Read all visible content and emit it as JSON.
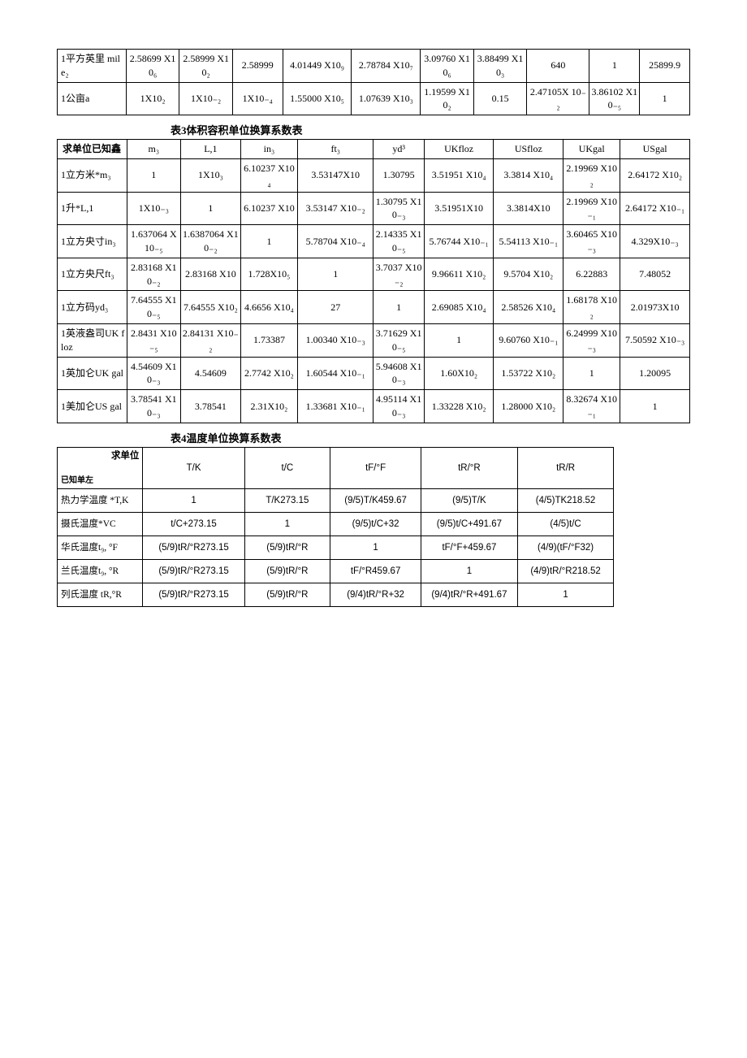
{
  "table1": {
    "rows": [
      {
        "label": "1平方英里 mile₂",
        "cells": [
          "2.58699 X10₆",
          "2.58999 X10₂",
          "2.58999",
          "4.01449 X10₉",
          "2.78784 X10₇",
          "3.09760 X10₆",
          "3.88499 X10₃",
          "640",
          "1",
          "25899.9"
        ]
      },
      {
        "label": "1公亩a",
        "cells": [
          "1X10₂",
          "1X10₋₂",
          "1X10₋₄",
          "1.55000 X10₅",
          "1.07639 X10₃",
          "1.19599 X10₂",
          "0.15",
          "2.47105X 10₋₂",
          "3.86102 X10₋₅",
          "1"
        ]
      }
    ]
  },
  "table3": {
    "title": "表3体积容积单位换算系数表",
    "header_left": "求单位已知鑫",
    "columns": [
      "m₃",
      "L,1",
      "in₃",
      "ft₃",
      "yd³",
      "UKfloz",
      "USfloz",
      "UKgal",
      "USgal"
    ],
    "rows": [
      {
        "label": "1立方米*m₃",
        "cells": [
          "1",
          "1X10₃",
          "6.10237 X10₄",
          "3.53147X10",
          "1.30795",
          "3.51951 X10₄",
          "3.3814 X10₄",
          "2.19969 X10₂",
          "2.64172 X10₂"
        ]
      },
      {
        "label": "1升*L,1",
        "cells": [
          "1X10₋₃",
          "1",
          "6.10237 X10",
          "3.53147 X10₋₂",
          "1.30795 X10₋₃",
          "3.51951X10",
          "3.3814X10",
          "2.19969 X10₋₁",
          "2.64172 X10₋₁"
        ]
      },
      {
        "label": "1立方央寸in₃",
        "cells": [
          "1.637064 X10₋₅",
          "1.6387064 X10₋₂",
          "1",
          "5.78704 X10₋₄",
          "2.14335 X10₋₅",
          "5.76744 X10₋₁",
          "5.54113 X10₋₁",
          "3.60465 X10₋₃",
          "4.329X10₋₃"
        ]
      },
      {
        "label": "1立方央尺ft₃",
        "cells": [
          "2.83168 X10₋₂",
          "2.83168 X10",
          "1.728X10₅",
          "1",
          "3.7037 X10₋₂",
          "9.96611 X10₂",
          "9.5704 X10₂",
          "6.22883",
          "7.48052"
        ]
      },
      {
        "label": "1立方码yd₃",
        "cells": [
          "7.64555 X10₋₅",
          "7.64555 X10₂",
          "4.6656 X10₄",
          "27",
          "1",
          "2.69085 X10₄",
          "2.58526 X10₄",
          "1.68178 X10₂",
          "2.01973X10"
        ]
      },
      {
        "label": "1英液盎司UK floz",
        "cells": [
          "2.8431 X10₋₅",
          "2.84131 X10₋₂",
          "1.73387",
          "1.00340 X10₋₃",
          "3.71629 X10₋₅",
          "1",
          "9.60760 X10₋₁",
          "6.24999 X10₋₃",
          "7.50592 X10₋₃"
        ]
      },
      {
        "label": "1英加仑UK gal",
        "cells": [
          "4.54609 X10₋₃",
          "4.54609",
          "2.7742 X10₂",
          "1.60544 X10₋₁",
          "5.94608 X10₋₃",
          "1.60X10₂",
          "1.53722 X10₂",
          "1",
          "1.20095"
        ]
      },
      {
        "label": "1美加仑US gal",
        "cells": [
          "3.78541 X10₋₃",
          "3.78541",
          "2.31X10₂",
          "1.33681 X10₋₁",
          "4.95114 X10₋₃",
          "1.33228 X10₂",
          "1.28000 X10₂",
          "8.32674 X10₋₁",
          "1"
        ]
      }
    ]
  },
  "table4": {
    "title": "表4温度单位换算系数表",
    "header_left_top": "求单位",
    "header_left_bot": "已知单左",
    "columns": [
      "T/K",
      "t/C",
      "tF/°F",
      "tR/°R",
      "tR/R"
    ],
    "rows": [
      {
        "label": "热力学温度 *T,K",
        "cells": [
          "1",
          "T/K273.15",
          "(9/5)T/K459.67",
          "(9/5)T/K",
          "(4/5)TK218.52"
        ]
      },
      {
        "label": "摄氏温度*VC",
        "cells": [
          "t/C+273.15",
          "1",
          "(9/5)t/C+32",
          "(9/5)t/C+491.67",
          "(4/5)t/C"
        ]
      },
      {
        "label": "华氏温度t₉, °F",
        "cells": [
          "(5/9)tR/°R273.15",
          "(5/9)tR/°R",
          "1",
          "tF/°F+459.67",
          "(4/9)(tF/°F32)"
        ]
      },
      {
        "label": "兰氏温度t₉, °R",
        "cells": [
          "(5/9)tR/°R273.15",
          "(5/9)tR/°R",
          "tF/°R459.67",
          "1",
          "(4/9)tR/°R218.52"
        ]
      },
      {
        "label": "列氏温度 tR,°R",
        "cells": [
          "(5/9)tR/°R273.15",
          "(5/9)tR/°R",
          "(9/4)tR/°R+32",
          "(9/4)tR/°R+491.67",
          "1"
        ]
      }
    ]
  },
  "colors": {
    "border": "#000000",
    "bg": "#ffffff",
    "text": "#000000"
  }
}
